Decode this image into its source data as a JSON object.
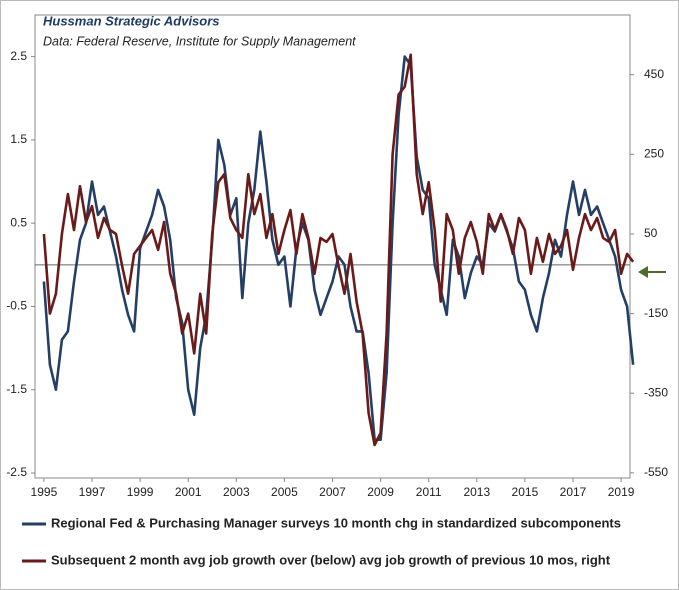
{
  "chart_data": {
    "type": "line",
    "title": "Hussman Strategic Advisors",
    "subtitle": "Data: Federal Reserve, Institute for Supply Management",
    "x": [
      1995,
      1995.25,
      1995.5,
      1995.75,
      1996,
      1996.25,
      1996.5,
      1996.75,
      1997,
      1997.25,
      1997.5,
      1997.75,
      1998,
      1998.25,
      1998.5,
      1998.75,
      1999,
      1999.25,
      1999.5,
      1999.75,
      2000,
      2000.25,
      2000.5,
      2000.75,
      2001,
      2001.25,
      2001.5,
      2001.75,
      2002,
      2002.25,
      2002.5,
      2002.75,
      2003,
      2003.25,
      2003.5,
      2003.75,
      2004,
      2004.25,
      2004.5,
      2004.75,
      2005,
      2005.25,
      2005.5,
      2005.75,
      2006,
      2006.25,
      2006.5,
      2006.75,
      2007,
      2007.25,
      2007.5,
      2007.75,
      2008,
      2008.25,
      2008.5,
      2008.75,
      2009,
      2009.25,
      2009.5,
      2009.75,
      2010,
      2010.25,
      2010.5,
      2010.75,
      2011,
      2011.25,
      2011.5,
      2011.75,
      2012,
      2012.25,
      2012.5,
      2012.75,
      2013,
      2013.25,
      2013.5,
      2013.75,
      2014,
      2014.25,
      2014.5,
      2014.75,
      2015,
      2015.25,
      2015.5,
      2015.75,
      2016,
      2016.25,
      2016.5,
      2016.75,
      2017,
      2017.25,
      2017.5,
      2017.75,
      2018,
      2018.25,
      2018.5,
      2018.75,
      2019,
      2019.25,
      2019.5
    ],
    "series": [
      {
        "name": "Regional Fed & Purchasing Manager surveys 10 month chg in standardized subcomponents",
        "color": "#243f66",
        "values": [
          -0.2,
          -1.2,
          -1.5,
          -0.9,
          -0.8,
          -0.2,
          0.3,
          0.5,
          1.0,
          0.6,
          0.7,
          0.4,
          0.1,
          -0.3,
          -0.6,
          -0.8,
          0.2,
          0.4,
          0.6,
          0.9,
          0.7,
          0.3,
          -0.4,
          -0.7,
          -1.5,
          -1.8,
          -1.0,
          -0.6,
          0.3,
          1.5,
          1.2,
          0.6,
          0.8,
          -0.4,
          0.5,
          0.9,
          1.6,
          1.0,
          0.3,
          0.0,
          0.1,
          -0.5,
          0.2,
          0.5,
          0.3,
          -0.3,
          -0.6,
          -0.4,
          -0.2,
          0.1,
          0.0,
          -0.5,
          -0.8,
          -0.8,
          -1.3,
          -2.1,
          -2.1,
          -1.3,
          0.5,
          1.8,
          2.5,
          2.4,
          1.3,
          0.9,
          0.8,
          0.0,
          -0.3,
          -0.6,
          0.3,
          0.1,
          -0.4,
          -0.1,
          0.1,
          0.0,
          0.5,
          0.4,
          0.6,
          0.4,
          0.2,
          -0.2,
          -0.3,
          -0.6,
          -0.8,
          -0.4,
          -0.1,
          0.3,
          0.1,
          0.6,
          1.0,
          0.6,
          0.9,
          0.6,
          0.7,
          0.5,
          0.3,
          0.1,
          -0.3,
          -0.5,
          -1.2
        ]
      },
      {
        "name": "Subsequent 2 month avg job growth over (below) avg job growth of previous 10 mos, right",
        "color": "#6b1a1a",
        "axis": "y2",
        "values": [
          50,
          -150,
          -100,
          50,
          150,
          60,
          170,
          80,
          120,
          40,
          90,
          60,
          50,
          -30,
          -100,
          0,
          20,
          40,
          60,
          10,
          80,
          -50,
          -100,
          -200,
          -150,
          -250,
          -100,
          -200,
          50,
          180,
          200,
          90,
          60,
          40,
          200,
          100,
          150,
          40,
          100,
          0,
          60,
          110,
          0,
          100,
          40,
          -50,
          40,
          30,
          50,
          -30,
          -100,
          0,
          -120,
          -200,
          -400,
          -480,
          -450,
          -200,
          250,
          400,
          420,
          500,
          200,
          100,
          180,
          60,
          -120,
          100,
          60,
          -50,
          40,
          80,
          30,
          -50,
          100,
          60,
          100,
          60,
          0,
          90,
          60,
          -50,
          40,
          -20,
          50,
          0,
          20,
          60,
          -40,
          40,
          100,
          60,
          90,
          40,
          30,
          60,
          -50,
          0,
          -20
        ]
      }
    ],
    "xlim": [
      1994.63,
      2019.37
    ],
    "xticks": [
      1995,
      1997,
      1999,
      2001,
      2003,
      2005,
      2007,
      2009,
      2011,
      2013,
      2015,
      2017,
      2019
    ],
    "ylim": [
      -2.56,
      3.0
    ],
    "yticks": [
      -2.5,
      -1.5,
      -0.5,
      0.5,
      1.5,
      2.5
    ],
    "y2lim": [
      -563,
      600
    ],
    "y2ticks": [
      -550,
      -350,
      -150,
      50,
      250,
      450
    ]
  }
}
